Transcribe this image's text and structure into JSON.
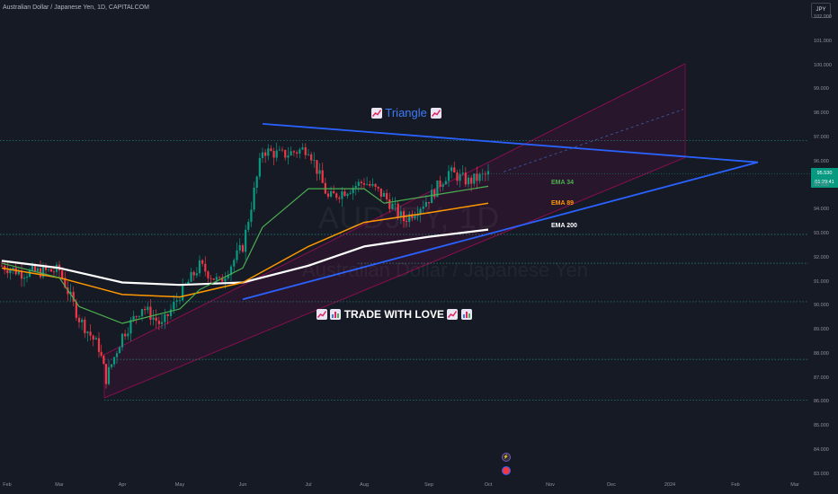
{
  "header": {
    "title": "Australian Dollar / Japanese Yen, 1D, CAPITALCOM",
    "currency_button": "JPY"
  },
  "watermark": {
    "symbol": "AUDJPY, 1D",
    "name": "Australian Dollar / Japanese Yen"
  },
  "annotations": {
    "triangle_label": "Triangle",
    "ema34_label": "EMA 34",
    "ema89_label": "EMA 89",
    "ema200_label": "EMA 200",
    "slogan": "TRADE WITH LOVE",
    "event_flash": "⚡"
  },
  "price_label": {
    "price": "95.530",
    "countdown": "01:29:41",
    "color": "#089981"
  },
  "colors": {
    "background": "#161a25",
    "up": "#089981",
    "down": "#f23645",
    "ema34": "#4caf50",
    "ema89": "#ff9800",
    "ema200": "#ffffff",
    "triangle": "#2962ff",
    "channel": "#880e4f",
    "levels": "#26a69a"
  },
  "chart_data": {
    "type": "candlestick",
    "title": "Australian Dollar / Japanese Yen, 1D, CAPITALCOM",
    "ylim": [
      82.8,
      102.6
    ],
    "y_ticks": [
      "83.000",
      "84.000",
      "85.000",
      "86.000",
      "87.000",
      "88.000",
      "89.000",
      "90.000",
      "91.000",
      "92.000",
      "93.000",
      "94.000",
      "95.000",
      "96.000",
      "97.000",
      "98.000",
      "99.000",
      "100.000",
      "101.000",
      "102.000"
    ],
    "x_ticks": [
      "Feb",
      "Mar",
      "Apr",
      "May",
      "Jun",
      "Jul",
      "Aug",
      "Sep",
      "Oct",
      "Nov",
      "Dec",
      "2024",
      "Feb",
      "Mar"
    ],
    "grid": false,
    "close_path": [
      [
        "Feb",
        91.7
      ],
      [
        "Feb+",
        91.4
      ],
      [
        "Mar",
        91.5
      ],
      [
        "Mar+",
        89.5
      ],
      [
        "Mar++",
        88.3
      ],
      [
        "Apr-",
        87.0
      ],
      [
        "Apr",
        88.8
      ],
      [
        "Apr+",
        90.0
      ],
      [
        "Apr++",
        89.2
      ],
      [
        "May",
        90.5
      ],
      [
        "May+",
        91.7
      ],
      [
        "May++",
        91.0
      ],
      [
        "Jun",
        92.5
      ],
      [
        "Jun+",
        96.5
      ],
      [
        "Jun++",
        96.3
      ],
      [
        "Jul",
        96.6
      ],
      [
        "Jul+",
        94.5
      ],
      [
        "Aug",
        95.2
      ],
      [
        "Aug+",
        94.6
      ],
      [
        "Aug++",
        93.6
      ],
      [
        "Sep",
        94.5
      ],
      [
        "Sep+",
        95.6
      ],
      [
        "Sep++",
        95.2
      ],
      [
        "Oct",
        95.5
      ]
    ],
    "ema34": [
      [
        "Feb",
        91.8
      ],
      [
        "Mar",
        91.2
      ],
      [
        "Mar+",
        90.0
      ],
      [
        "Apr",
        89.3
      ],
      [
        "May",
        89.9
      ],
      [
        "May+",
        90.7
      ],
      [
        "Jun",
        91.6
      ],
      [
        "Jun+",
        93.3
      ],
      [
        "Jul",
        94.9
      ],
      [
        "Aug",
        94.9
      ],
      [
        "Aug+",
        94.3
      ],
      [
        "Sep",
        94.6
      ],
      [
        "Oct",
        95.0
      ]
    ],
    "ema89": [
      [
        "Feb",
        91.6
      ],
      [
        "Mar",
        91.2
      ],
      [
        "Apr",
        90.5
      ],
      [
        "May",
        90.4
      ],
      [
        "Jun",
        91.0
      ],
      [
        "Jul",
        92.5
      ],
      [
        "Aug",
        93.5
      ],
      [
        "Sep",
        93.9
      ],
      [
        "Oct",
        94.3
      ]
    ],
    "ema200": [
      [
        "Feb",
        91.9
      ],
      [
        "Mar",
        91.6
      ],
      [
        "Apr",
        91.0
      ],
      [
        "May",
        90.9
      ],
      [
        "Jun",
        91.0
      ],
      [
        "Jul",
        91.7
      ],
      [
        "Aug",
        92.5
      ],
      [
        "Sep",
        92.9
      ],
      [
        "Oct",
        93.2
      ]
    ],
    "levels": [
      96.9,
      93.0,
      91.8,
      90.2,
      87.8,
      86.1
    ],
    "triangle": {
      "upper": [
        [
          "Jun+",
          97.6
        ],
        [
          "Feb",
          96.0
        ]
      ],
      "lower": [
        [
          "Jun",
          90.3
        ],
        [
          "Feb",
          96.0
        ]
      ]
    },
    "channel": {
      "upper": [
        [
          "Mar",
          88.0
        ],
        [
          "Dec",
          100.1
        ]
      ],
      "lower": [
        [
          "Mar",
          86.2
        ],
        [
          "Dec",
          96.2
        ]
      ]
    },
    "last_price": 95.53
  }
}
